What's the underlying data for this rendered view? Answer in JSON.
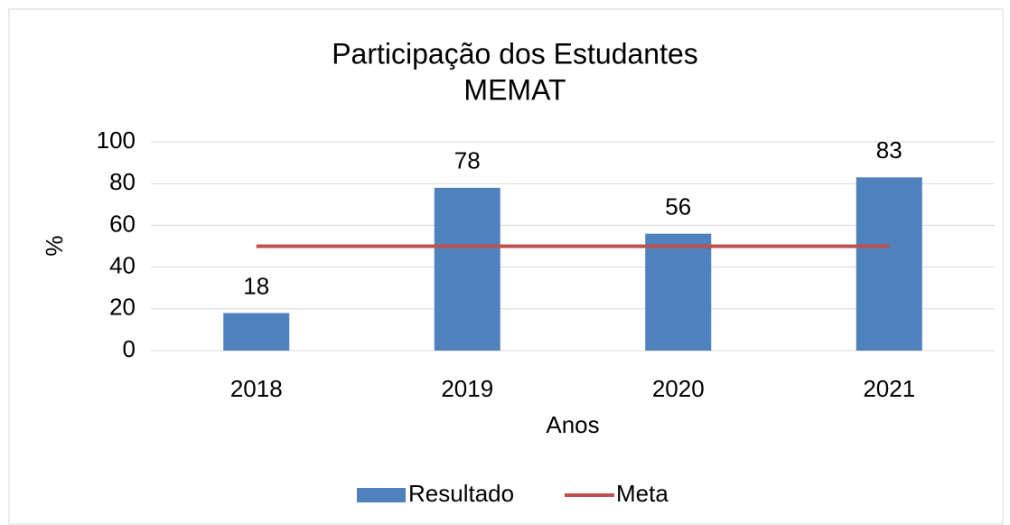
{
  "chart_data": {
    "type": "bar",
    "title": "Participação dos Estudantes",
    "subtitle": "MEMAT",
    "x_label": "Anos",
    "y_label": "%",
    "categories": [
      "2018",
      "2019",
      "2020",
      "2021"
    ],
    "series": [
      {
        "name": "Resultado",
        "type": "bar",
        "color": "#4f81bd",
        "values": [
          18,
          78,
          56,
          83
        ]
      },
      {
        "name": "Meta",
        "type": "line",
        "color": "#c0504d",
        "values": [
          50,
          50,
          50,
          50
        ]
      }
    ],
    "ylim": [
      0,
      100
    ],
    "yticks": [
      0,
      20,
      40,
      60,
      80,
      100
    ],
    "grid": true,
    "legend": "bottom"
  }
}
